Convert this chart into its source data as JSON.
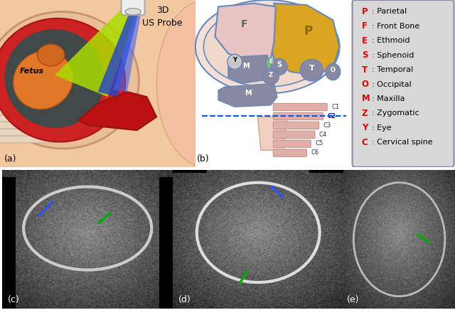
{
  "figure_size": [
    6.4,
    4.43
  ],
  "dpi": 100,
  "background": "#ffffff",
  "panel_a": {
    "label": "(a)",
    "title_line1": "3D",
    "title_line2": "US Probe",
    "fetus_text": "Fetus"
  },
  "panel_b": {
    "label": "(b)",
    "legend_items": [
      {
        "letter": "P",
        "text": ": Parietal"
      },
      {
        "letter": "F",
        "text": ": Front Bone"
      },
      {
        "letter": "E",
        "text": ": Ethmoid"
      },
      {
        "letter": "S",
        "text": ": Sphenoid"
      },
      {
        "letter": "T",
        "text": ": Temporal"
      },
      {
        "letter": "O",
        "text": ": Occipital"
      },
      {
        "letter": "M",
        "text": ": Maxilla"
      },
      {
        "letter": "Z",
        "text": ": Zygomatic"
      },
      {
        "letter": "Y",
        "text": ": Eye"
      },
      {
        "letter": "C",
        "text": ": Cervical spine"
      }
    ]
  },
  "colors": {
    "blue_arrow": "#3355EE",
    "green_arrow": "#00AA00",
    "legend_bg": "#D8D8D8",
    "legend_border": "#8888AA",
    "parietal": "#DAA520",
    "front_bone": "#E8C4C4",
    "gray_bone": "#8888A0",
    "ethmoid": "#80B880",
    "cervical": "#E0B0A8",
    "head_outline": "#F0D8CC",
    "skull_border": "#6688BB",
    "red_letter": "#DD0000"
  }
}
